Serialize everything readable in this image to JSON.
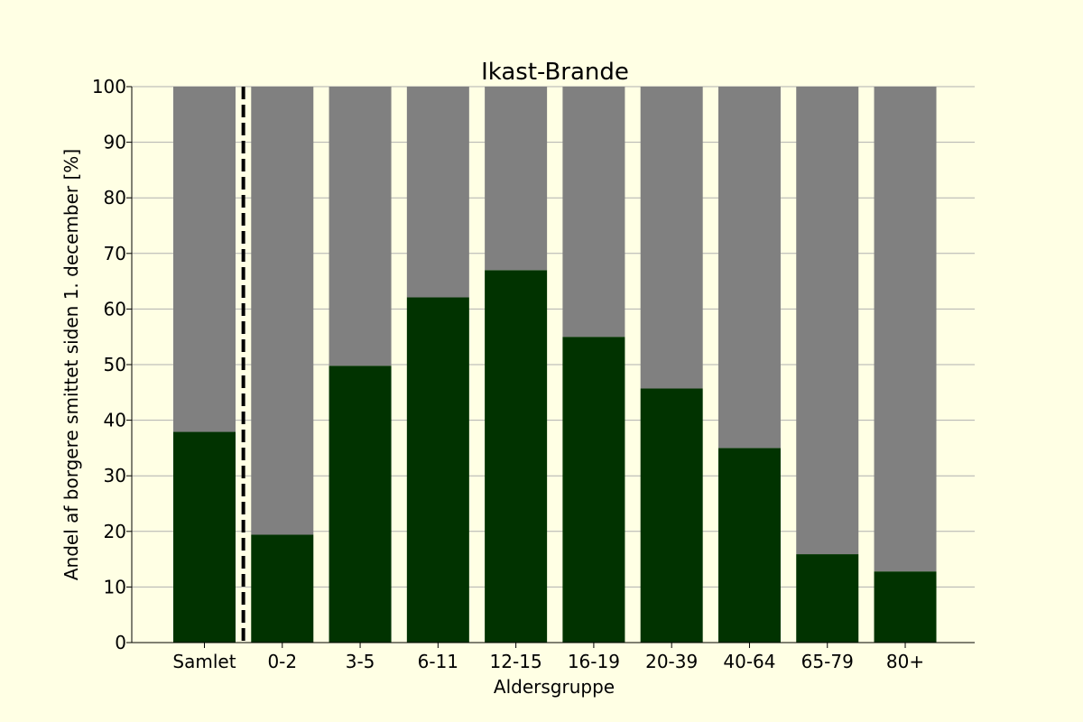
{
  "chart_data": {
    "type": "bar",
    "stacked": true,
    "title": "Ikast-Brande",
    "xlabel": "Aldersgruppe",
    "ylabel": "Andel af borgere smittet siden 1. december [%]",
    "categories": [
      "Samlet",
      "0-2",
      "3-5",
      "6-11",
      "12-15",
      "16-19",
      "20-39",
      "40-64",
      "65-79",
      "80+"
    ],
    "series": [
      {
        "color": "#013300",
        "values": [
          37.9,
          19.4,
          49.8,
          62.1,
          67.0,
          55.0,
          45.7,
          35.0,
          15.9,
          12.8
        ]
      },
      {
        "color": "#808080",
        "values": [
          62.1,
          80.6,
          50.2,
          37.9,
          33.0,
          45.0,
          54.3,
          65.0,
          84.1,
          87.2
        ]
      }
    ],
    "ylim": [
      0,
      100
    ],
    "yticks": [
      0,
      10,
      20,
      30,
      40,
      50,
      60,
      70,
      80,
      90,
      100
    ],
    "grid": "horizontal",
    "separator_after_category": "Samlet",
    "background_color": "#ffffe4"
  }
}
